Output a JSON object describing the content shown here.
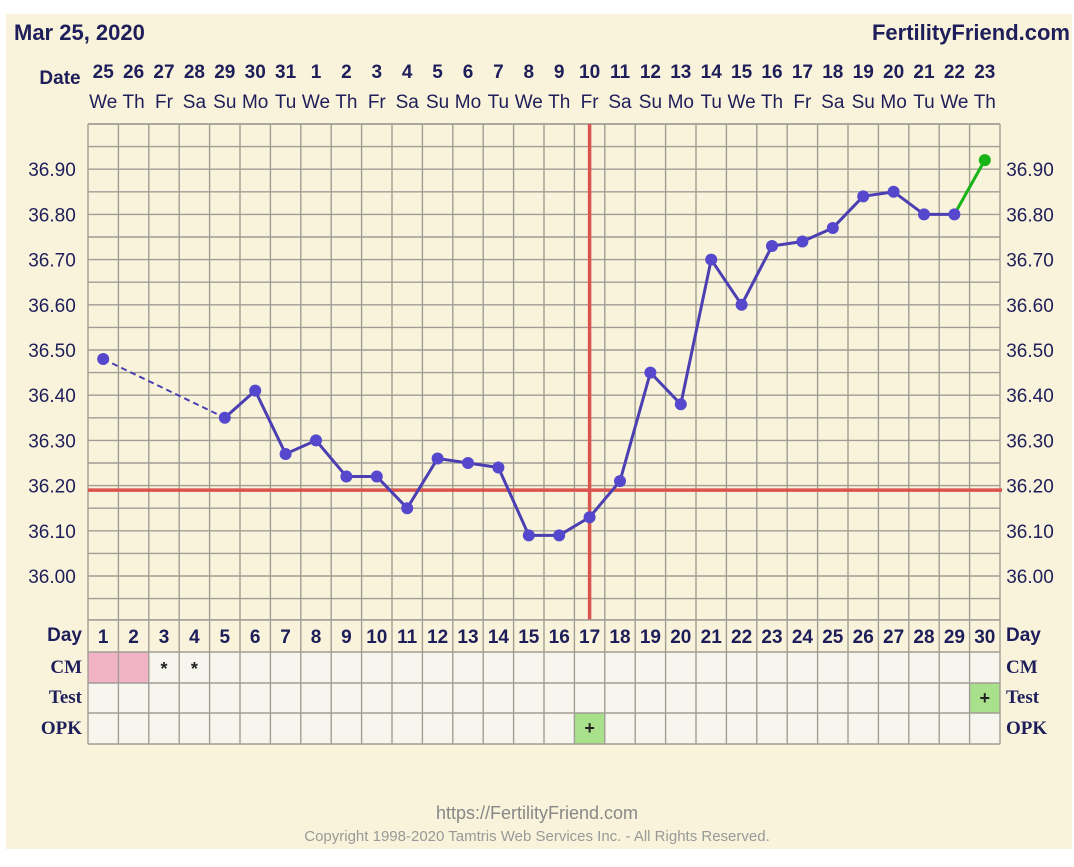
{
  "header": {
    "date": "Mar 25, 2020",
    "site": "FertilityFriend.com"
  },
  "footer": {
    "url": "https://FertilityFriend.com",
    "copyright": "Copyright 1998-2020 Tamtris Web Services Inc. - All Rights Reserved."
  },
  "colors": {
    "background": "#f8f3da",
    "grid": "#a09e94",
    "temp_line": "#4b3fb2",
    "temp_point": "#5548cc",
    "today_line": "#17b317",
    "coverline": "#d9534f",
    "ovulation_line": "#d9534f",
    "cm_pink": "#f2b3c7",
    "positive_green": "#a8e08c",
    "row_label": "#1e1e5a"
  },
  "chart_data": {
    "type": "line",
    "title": "",
    "row_labels": {
      "date": "Date",
      "day": "Day",
      "cm": "CM",
      "test": "Test",
      "opk": "OPK"
    },
    "dates": [
      "25",
      "26",
      "27",
      "28",
      "29",
      "30",
      "31",
      "1",
      "2",
      "3",
      "4",
      "5",
      "6",
      "7",
      "8",
      "9",
      "10",
      "11",
      "12",
      "13",
      "14",
      "15",
      "16",
      "17",
      "18",
      "19",
      "20",
      "21",
      "22",
      "23"
    ],
    "weekdays": [
      "We",
      "Th",
      "Fr",
      "Sa",
      "Su",
      "Mo",
      "Tu",
      "We",
      "Th",
      "Fr",
      "Sa",
      "Su",
      "Mo",
      "Tu",
      "We",
      "Th",
      "Fr",
      "Sa",
      "Su",
      "Mo",
      "Tu",
      "We",
      "Th",
      "Fr",
      "Sa",
      "Su",
      "Mo",
      "Tu",
      "We",
      "Th"
    ],
    "days": [
      1,
      2,
      3,
      4,
      5,
      6,
      7,
      8,
      9,
      10,
      11,
      12,
      13,
      14,
      15,
      16,
      17,
      18,
      19,
      20,
      21,
      22,
      23,
      24,
      25,
      26,
      27,
      28,
      29,
      30
    ],
    "y_ticks": [
      "36.00",
      "36.10",
      "36.20",
      "36.30",
      "36.40",
      "36.50",
      "36.60",
      "36.70",
      "36.80",
      "36.90"
    ],
    "ylim": [
      35.9,
      37.0
    ],
    "temperatures": [
      36.48,
      null,
      null,
      null,
      36.35,
      36.41,
      36.27,
      36.3,
      36.22,
      36.22,
      36.15,
      36.26,
      36.25,
      36.24,
      36.09,
      36.09,
      36.13,
      36.21,
      36.45,
      36.38,
      36.7,
      36.6,
      36.73,
      36.74,
      36.77,
      36.84,
      36.85,
      36.8,
      36.8,
      36.92
    ],
    "dashed_segment": [
      1,
      5
    ],
    "today_segment": [
      29,
      30
    ],
    "coverline": 36.19,
    "ovulation_day": 17,
    "cm": [
      {
        "day": 1,
        "type": "pink"
      },
      {
        "day": 2,
        "type": "pink"
      },
      {
        "day": 3,
        "mark": "*"
      },
      {
        "day": 4,
        "mark": "*"
      }
    ],
    "test": [
      {
        "day": 30,
        "mark": "+"
      }
    ],
    "opk": [
      {
        "day": 17,
        "mark": "+"
      }
    ]
  }
}
